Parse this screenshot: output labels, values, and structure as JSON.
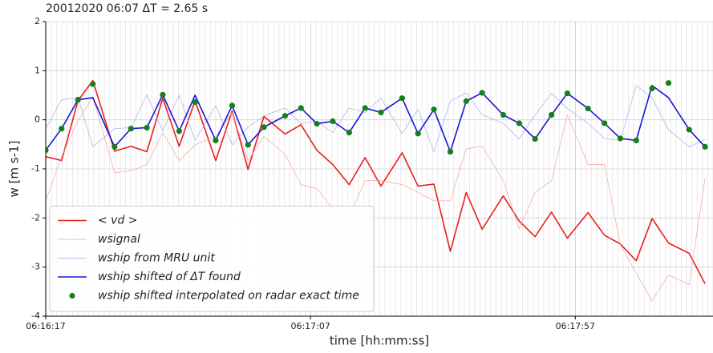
{
  "chart_data": {
    "type": "line",
    "title": "20012020 06:07 ΔT = 2.65 s",
    "xlabel": "time [hh:mm:ss]",
    "ylabel": "w [m s-1]",
    "x": [
      0,
      3.0,
      6.1,
      8.9,
      13.0,
      16.1,
      19.1,
      22.1,
      25.2,
      28.2,
      32.1,
      35.2,
      38.2,
      41.2,
      45.2,
      48.2,
      51.2,
      54.2,
      57.3,
      60.3,
      63.3,
      67.3,
      70.3,
      73.3,
      76.4,
      79.4,
      82.4,
      86.4,
      89.4,
      92.4,
      95.5,
      98.5,
      102.4,
      105.5,
      108.5,
      111.5,
      114.5,
      117.6,
      121.5,
      124.5
    ],
    "series": [
      {
        "name": "< vd >",
        "type": "line",
        "color": "#e8201c",
        "width": 1.6,
        "values": [
          -0.75,
          -0.83,
          0.39,
          0.8,
          -0.64,
          -0.54,
          -0.65,
          0.44,
          -0.54,
          0.39,
          -0.83,
          0.18,
          -1.01,
          0.07,
          -0.29,
          -0.1,
          -0.62,
          -0.91,
          -1.32,
          -0.77,
          -1.35,
          -0.67,
          -1.35,
          -1.31,
          -2.68,
          -1.48,
          -2.23,
          -1.55,
          -2.06,
          -2.38,
          -1.88,
          -2.41,
          -1.89,
          -2.35,
          -2.53,
          -2.87,
          -2.01,
          -2.51,
          -2.72,
          -3.34
        ]
      },
      {
        "name": "wsignal",
        "type": "line",
        "color": "#f4a3a3",
        "width": 0.7,
        "values": [
          -1.65,
          -0.75,
          -0.02,
          0.47,
          -1.08,
          -1.04,
          -0.91,
          -0.26,
          -0.83,
          -0.51,
          -0.34,
          0.15,
          -0.83,
          -0.34,
          -0.7,
          -1.32,
          -1.4,
          -1.81,
          -1.97,
          -1.24,
          -1.24,
          -1.32,
          -1.48,
          -1.65,
          -1.65,
          -0.59,
          -0.54,
          -1.24,
          -2.22,
          -1.48,
          -1.24,
          0.1,
          -0.91,
          -0.91,
          -2.54,
          -3.12,
          -3.69,
          -3.16,
          -3.36,
          -1.19
        ]
      },
      {
        "name": "wship from MRU unit",
        "type": "line",
        "color": "#a9a9ee",
        "width": 0.7,
        "values": [
          -0.18,
          0.41,
          0.45,
          -0.55,
          -0.18,
          -0.16,
          0.51,
          -0.23,
          0.5,
          -0.42,
          0.29,
          -0.51,
          -0.15,
          0.08,
          0.24,
          -0.08,
          -0.03,
          -0.26,
          0.24,
          0.15,
          0.44,
          -0.28,
          0.21,
          -0.65,
          0.38,
          0.55,
          0.1,
          -0.07,
          -0.39,
          0.1,
          0.54,
          0.23,
          -0.07,
          -0.38,
          -0.42,
          0.7,
          0.45,
          -0.2,
          -0.55,
          -0.4
        ]
      },
      {
        "name": "wship shifted of ΔT found",
        "type": "line",
        "color": "#1616d6",
        "width": 1.6,
        "values": [
          -0.62,
          -0.18,
          0.41,
          0.45,
          -0.55,
          -0.18,
          -0.16,
          0.51,
          -0.23,
          0.5,
          -0.42,
          0.29,
          -0.51,
          -0.15,
          0.08,
          0.24,
          -0.08,
          -0.03,
          -0.26,
          0.24,
          0.15,
          0.44,
          -0.28,
          0.21,
          -0.65,
          0.38,
          0.55,
          0.1,
          -0.07,
          -0.39,
          0.1,
          0.54,
          0.23,
          -0.07,
          -0.38,
          -0.42,
          0.7,
          0.45,
          -0.2,
          -0.55
        ]
      },
      {
        "name": "wship shifted interpolated on radar exact time",
        "type": "scatter",
        "color": "#15801a",
        "values": [
          -0.62,
          -0.18,
          0.41,
          0.73,
          -0.55,
          -0.18,
          -0.16,
          0.51,
          -0.23,
          0.36,
          -0.42,
          0.29,
          -0.51,
          -0.15,
          0.08,
          0.24,
          -0.08,
          -0.03,
          -0.26,
          0.24,
          0.15,
          0.44,
          -0.28,
          0.21,
          -0.65,
          0.38,
          0.55,
          0.1,
          -0.07,
          -0.39,
          0.1,
          0.54,
          0.23,
          -0.07,
          -0.38,
          -0.42,
          0.64,
          0.75,
          -0.2,
          -0.55
        ]
      }
    ],
    "xlim": [
      0,
      126
    ],
    "xticks": [
      {
        "value": 0,
        "label": "06:16:17"
      },
      {
        "value": 50,
        "label": "06:17:07"
      },
      {
        "value": 100,
        "label": "06:17:57"
      }
    ],
    "ylim": [
      -4,
      2
    ],
    "yticks": [
      -4,
      -3,
      -2,
      -1,
      0,
      1,
      2
    ],
    "grid": true,
    "legend": "lower left"
  }
}
